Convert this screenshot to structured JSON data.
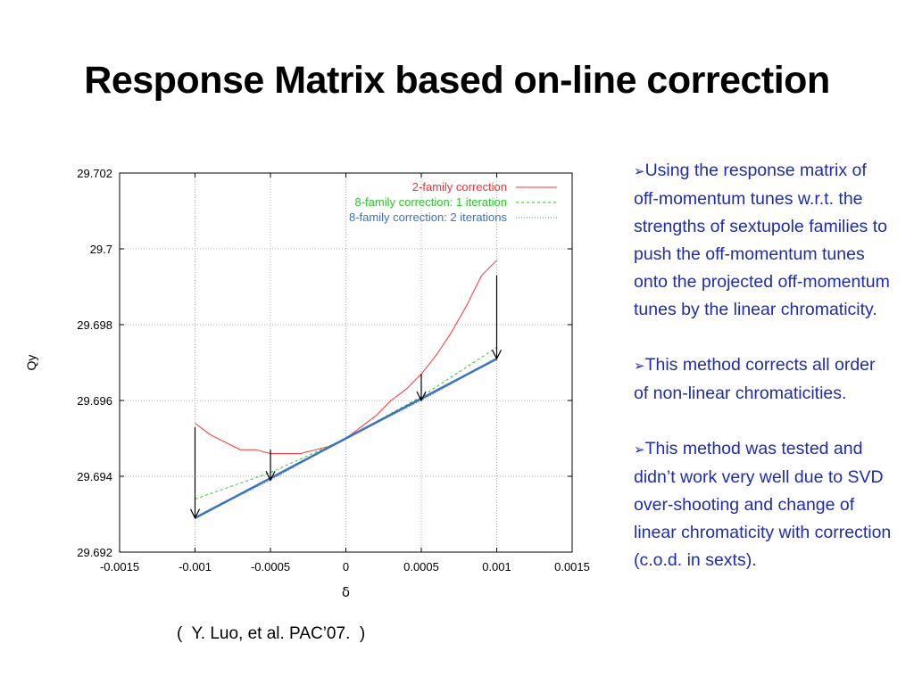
{
  "slide": {
    "title": "Response Matrix based on-line correction",
    "citation": "(  Y. Luo, et al. PAC’07.  )",
    "bullets": [
      "Using  the response matrix of off-momentum tunes w.r.t. the strengths of sextupole families  to push the off-momentum tunes onto the projected off-momentum tunes by the linear chromaticity.",
      "This method corrects all order of non-linear chromaticities.",
      "This method was tested and didn’t work very well due to SVD over-shooting and change of linear chromaticity with correction (c.o.d. in sexts)."
    ],
    "bullet_marker": "➢"
  },
  "chart_data": {
    "type": "line",
    "xlabel": "δ",
    "ylabel": "Qy",
    "xlim": [
      -0.0015,
      0.0015
    ],
    "ylim": [
      29.692,
      29.702
    ],
    "xticks": [
      "-0.0015",
      "-0.001",
      "-0.0005",
      "0",
      "0.0005",
      "0.001",
      "0.0015"
    ],
    "yticks": [
      "29.692",
      "29.694",
      "29.696",
      "29.698",
      "29.7",
      "29.702"
    ],
    "grid": true,
    "legend_position": "top-right",
    "series": [
      {
        "name": "2-family correction",
        "color": "#ff3030",
        "style": "solid-thin",
        "x": [
          -0.001,
          -0.0009,
          -0.0008,
          -0.0007,
          -0.0006,
          -0.0005,
          -0.0004,
          -0.0003,
          -0.0002,
          -0.0001,
          0,
          0.0001,
          0.0002,
          0.0003,
          0.0004,
          0.0005,
          0.0006,
          0.0007,
          0.0008,
          0.0009,
          0.001
        ],
        "y": [
          29.6954,
          29.6951,
          29.6949,
          29.6947,
          29.6947,
          29.6946,
          29.6946,
          29.6946,
          29.6947,
          29.6948,
          29.695,
          29.6953,
          29.6956,
          29.696,
          29.6963,
          29.6967,
          29.6972,
          29.6978,
          29.6985,
          29.6993,
          29.6997
        ]
      },
      {
        "name": "8-family correction: 1 iteration",
        "color": "#22cc22",
        "style": "dashed",
        "x": [
          -0.001,
          -0.0005,
          0,
          0.0005,
          0.001
        ],
        "y": [
          29.6934,
          29.6941,
          29.695,
          29.6961,
          29.6974
        ]
      },
      {
        "name": "8-family correction: 2 iterations",
        "color": "#3a6fc4",
        "style": "dotted",
        "x": [
          -0.001,
          -0.0005,
          0,
          0.0005,
          0.001
        ],
        "y": [
          29.6929,
          29.6939,
          29.695,
          29.696,
          29.6971
        ]
      }
    ],
    "annotations": {
      "target_line": {
        "color": "#3a73c0",
        "x": [
          -0.001,
          0.001
        ],
        "y": [
          29.6929,
          29.6971
        ]
      },
      "arrows": [
        {
          "x": -0.001,
          "y_from": 29.6953,
          "y_to": 29.6929
        },
        {
          "x": -0.0005,
          "y_from": 29.6947,
          "y_to": 29.6939
        },
        {
          "x": 0.0005,
          "y_from": 29.6967,
          "y_to": 29.696
        },
        {
          "x": 0.001,
          "y_from": 29.6993,
          "y_to": 29.6971
        }
      ]
    }
  }
}
